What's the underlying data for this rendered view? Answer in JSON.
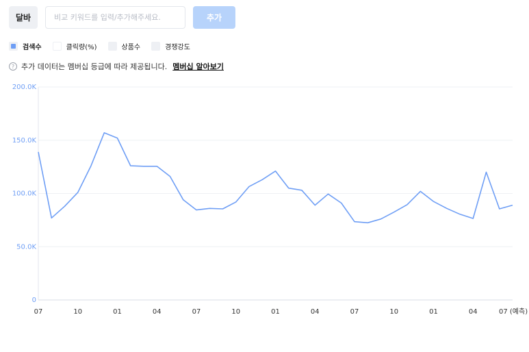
{
  "toolbar": {
    "keyword": "달바",
    "search_placeholder": "비교 키워드를 입력/추가해주세요.",
    "add_label": "추가"
  },
  "legend": [
    {
      "label": "검색수",
      "active": true
    },
    {
      "label": "클릭량(%)",
      "active": false
    },
    {
      "label": "상품수",
      "active": false
    },
    {
      "label": "경쟁강도",
      "active": false
    }
  ],
  "notice": {
    "icon": "help-icon",
    "text": "추가 데이터는 멤버십 등급에 따라 제공됩니다.",
    "link": "멤버십 알아보기"
  },
  "colors": {
    "series": "#6e9ef5",
    "button": "#b7d3fb",
    "grid": "#eef0f4"
  },
  "chart_data": {
    "type": "line",
    "title": "",
    "xlabel": "",
    "ylabel": "",
    "ylim": [
      0,
      200000
    ],
    "grid": true,
    "y_ticks": [
      "0",
      "50.0K",
      "100.0K",
      "150.0K",
      "200.0K"
    ],
    "x_ticks": [
      "07",
      "10",
      "01",
      "04",
      "07",
      "10",
      "01",
      "04",
      "07",
      "10",
      "01",
      "04",
      "07 (예측)"
    ],
    "series": [
      {
        "name": "검색수",
        "values": [
          139000,
          77000,
          88000,
          101000,
          126000,
          157000,
          152000,
          126000,
          125500,
          125500,
          116000,
          94000,
          84500,
          86000,
          85500,
          92000,
          106500,
          113000,
          121000,
          105000,
          103000,
          89000,
          99500,
          91000,
          73500,
          72500,
          76000,
          82500,
          89500,
          102000,
          92500,
          86000,
          80500,
          76500,
          120000,
          85500,
          89000
        ]
      }
    ]
  }
}
